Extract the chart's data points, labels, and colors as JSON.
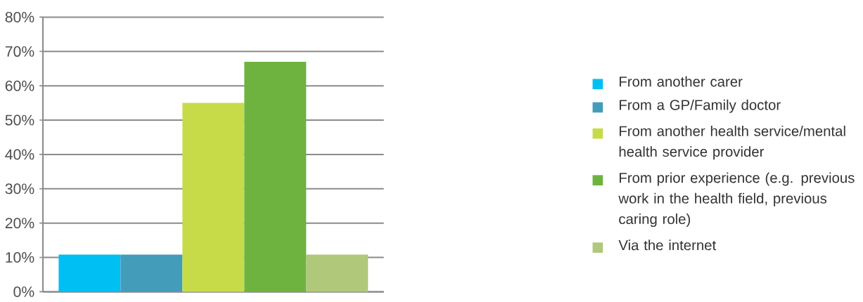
{
  "chart_data": {
    "type": "bar",
    "categories": [
      null
    ],
    "series": [
      {
        "name": "From another carer",
        "color": "#00bff2",
        "values": [
          10.8
        ]
      },
      {
        "name": "From a GP/Family doctor",
        "color": "#449cbb",
        "values": [
          10.8
        ]
      },
      {
        "name": "From another health service/mental health service provider",
        "color": "#c7db48",
        "values": [
          55
        ]
      },
      {
        "name": "From prior experience (e.g. previous work in the health field, previous caring role)",
        "color": "#6eb340",
        "values": [
          67
        ]
      },
      {
        "name": "Via the internet",
        "color": "#b0c87a",
        "values": [
          10.8
        ]
      }
    ],
    "ylim": [
      0,
      80
    ],
    "yticks": [
      {
        "value": 0,
        "label": "0%"
      },
      {
        "value": 10,
        "label": "10%"
      },
      {
        "value": 20,
        "label": "20%"
      },
      {
        "value": 30,
        "label": "30%"
      },
      {
        "value": 40,
        "label": "40%"
      },
      {
        "value": 50,
        "label": "50%"
      },
      {
        "value": 60,
        "label": "60%"
      },
      {
        "value": 70,
        "label": "70%"
      },
      {
        "value": 80,
        "label": "80%"
      }
    ],
    "grid": "y",
    "legend": "right",
    "tick_labels": "y"
  }
}
